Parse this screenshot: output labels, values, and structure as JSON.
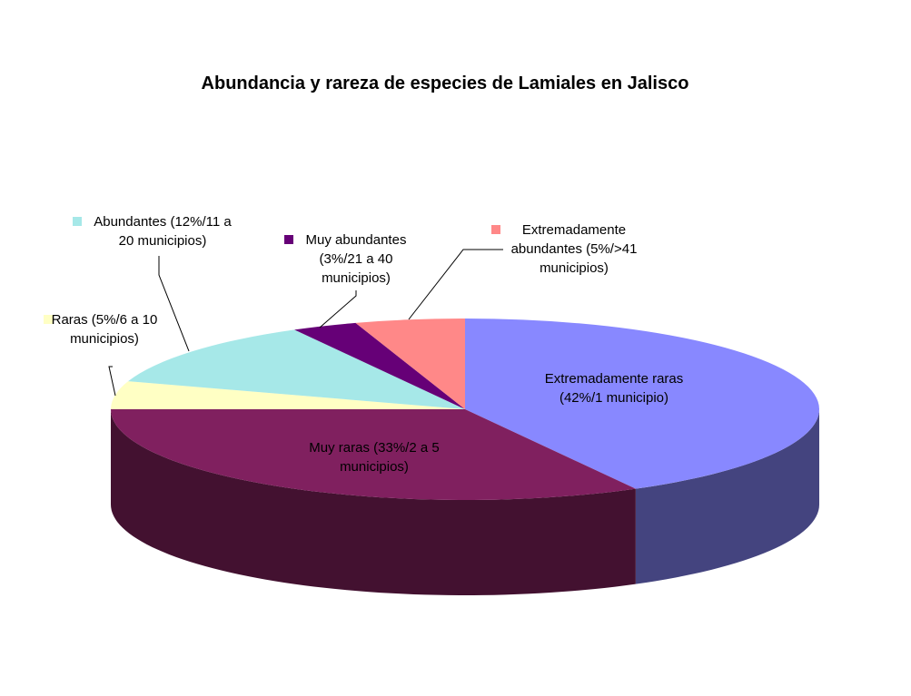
{
  "chart_data": {
    "type": "pie",
    "title": "Abundancia y rareza de especies de Lamiales en Jalisco",
    "three_d": true,
    "labels_show_legend_key": true,
    "slices": [
      {
        "key": "extremadamente-raras",
        "label_lines": [
          "Extremadamente raras",
          "(42%/1 municipio)"
        ],
        "value": 42,
        "color": "#8888FF",
        "side_color": "#44447F"
      },
      {
        "key": "muy-raras",
        "label_lines": [
          "Muy raras (33%/2 a 5",
          "municipios)"
        ],
        "value": 33,
        "color": "#80205F",
        "side_color": "#431130"
      },
      {
        "key": "raras",
        "label_lines": [
          "Raras (5%/6 a 10",
          "municipios)"
        ],
        "value": 5,
        "color": "#FFFFC4",
        "side_color": "#8A8A66"
      },
      {
        "key": "abundantes",
        "label_lines": [
          "Abundantes (12%/11 a",
          "20 municipios)"
        ],
        "value": 12,
        "color": "#A6E8E8",
        "side_color": "#577A7A"
      },
      {
        "key": "muy-abundantes",
        "label_lines": [
          "Muy abundantes",
          "(3%/21 a 40",
          "municipios)"
        ],
        "value": 3,
        "color": "#660077",
        "side_color": "#33003B"
      },
      {
        "key": "extremadamente-abundantes",
        "label_lines": [
          "Extremadamente",
          "abundantes (5%/>41",
          "municipios)"
        ],
        "value": 5,
        "color": "#FF8888",
        "side_color": "#884444"
      }
    ]
  }
}
